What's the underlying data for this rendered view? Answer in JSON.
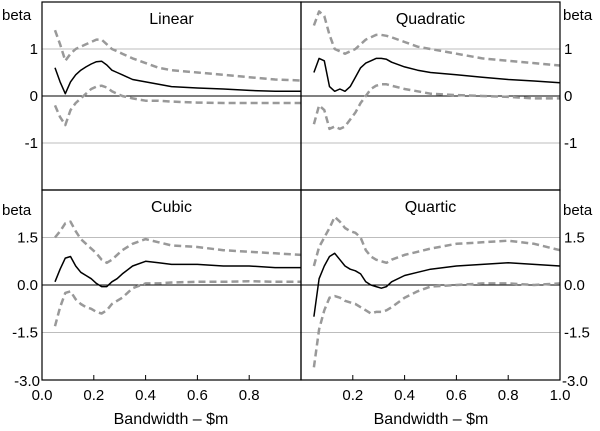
{
  "y_axis_label": "beta",
  "x_axis_label": "Bandwidth – $m",
  "colors": {
    "estimate": "#000000",
    "interval": "#999999",
    "grid": "#bdbdbd",
    "frame": "#000000"
  },
  "chart_data": [
    {
      "type": "line",
      "title": "Linear",
      "xlim": [
        0,
        1.0
      ],
      "ylim": [
        -2,
        2
      ],
      "yticks": [
        1,
        0,
        -1
      ],
      "ytick_labels": [
        "1",
        "0",
        "-1"
      ],
      "xticks": [
        0,
        0.2,
        0.4,
        0.6,
        0.8
      ],
      "xtick_labels": [
        "0.0",
        "0.2",
        "0.4",
        "0.6",
        "0.8"
      ],
      "series": [
        {
          "role": "estimate",
          "x": [
            0.05,
            0.07,
            0.09,
            0.11,
            0.13,
            0.15,
            0.17,
            0.19,
            0.21,
            0.23,
            0.25,
            0.27,
            0.29,
            0.31,
            0.35,
            0.4,
            0.45,
            0.5,
            0.6,
            0.7,
            0.8,
            0.9,
            1.0
          ],
          "y": [
            0.6,
            0.3,
            0.05,
            0.3,
            0.45,
            0.55,
            0.62,
            0.68,
            0.73,
            0.74,
            0.66,
            0.55,
            0.5,
            0.45,
            0.35,
            0.3,
            0.25,
            0.2,
            0.17,
            0.15,
            0.12,
            0.1,
            0.1
          ]
        },
        {
          "role": "upper",
          "x": [
            0.05,
            0.07,
            0.09,
            0.11,
            0.13,
            0.15,
            0.17,
            0.19,
            0.21,
            0.23,
            0.25,
            0.27,
            0.29,
            0.31,
            0.35,
            0.4,
            0.45,
            0.5,
            0.6,
            0.7,
            0.8,
            0.9,
            1.0
          ],
          "y": [
            1.4,
            1.1,
            0.75,
            0.9,
            1.0,
            1.05,
            1.1,
            1.15,
            1.2,
            1.2,
            1.1,
            1.0,
            0.95,
            0.9,
            0.8,
            0.7,
            0.6,
            0.55,
            0.5,
            0.45,
            0.4,
            0.35,
            0.33
          ]
        },
        {
          "role": "lower",
          "x": [
            0.05,
            0.07,
            0.09,
            0.11,
            0.13,
            0.15,
            0.17,
            0.19,
            0.21,
            0.23,
            0.25,
            0.27,
            0.29,
            0.31,
            0.35,
            0.4,
            0.45,
            0.5,
            0.6,
            0.7,
            0.8,
            0.9,
            1.0
          ],
          "y": [
            -0.2,
            -0.45,
            -0.62,
            -0.3,
            -0.15,
            -0.05,
            0.05,
            0.15,
            0.2,
            0.22,
            0.18,
            0.1,
            0.05,
            0.0,
            -0.05,
            -0.1,
            -0.1,
            -0.12,
            -0.14,
            -0.15,
            -0.15,
            -0.15,
            -0.15
          ]
        }
      ]
    },
    {
      "type": "line",
      "title": "Quadratic",
      "xlim": [
        0,
        1.0
      ],
      "ylim": [
        -2,
        2
      ],
      "yticks": [
        1,
        0,
        -1
      ],
      "ytick_labels": [
        "1",
        "0",
        "-1"
      ],
      "xticks": [
        0.2,
        0.4,
        0.6,
        0.8,
        1.0
      ],
      "xtick_labels": [
        "0.2",
        "0.4",
        "0.6",
        "0.8",
        "1.0"
      ],
      "series": [
        {
          "role": "estimate",
          "x": [
            0.05,
            0.07,
            0.09,
            0.11,
            0.13,
            0.15,
            0.17,
            0.19,
            0.21,
            0.23,
            0.25,
            0.27,
            0.29,
            0.31,
            0.33,
            0.35,
            0.4,
            0.45,
            0.5,
            0.6,
            0.7,
            0.8,
            0.9,
            1.0
          ],
          "y": [
            0.5,
            0.8,
            0.75,
            0.2,
            0.1,
            0.15,
            0.1,
            0.2,
            0.4,
            0.6,
            0.7,
            0.75,
            0.8,
            0.8,
            0.78,
            0.72,
            0.62,
            0.55,
            0.5,
            0.45,
            0.4,
            0.35,
            0.32,
            0.28
          ]
        },
        {
          "role": "upper",
          "x": [
            0.05,
            0.07,
            0.09,
            0.11,
            0.13,
            0.15,
            0.17,
            0.19,
            0.21,
            0.23,
            0.25,
            0.27,
            0.29,
            0.31,
            0.33,
            0.35,
            0.4,
            0.45,
            0.5,
            0.6,
            0.7,
            0.8,
            0.9,
            1.0
          ],
          "y": [
            1.5,
            1.8,
            1.7,
            1.3,
            1.0,
            0.95,
            0.9,
            0.95,
            1.0,
            1.1,
            1.2,
            1.25,
            1.3,
            1.3,
            1.28,
            1.25,
            1.15,
            1.05,
            1.0,
            0.9,
            0.8,
            0.75,
            0.7,
            0.65
          ]
        },
        {
          "role": "lower",
          "x": [
            0.05,
            0.07,
            0.09,
            0.11,
            0.13,
            0.15,
            0.17,
            0.19,
            0.21,
            0.23,
            0.25,
            0.27,
            0.29,
            0.31,
            0.33,
            0.35,
            0.4,
            0.45,
            0.5,
            0.6,
            0.7,
            0.8,
            0.9,
            1.0
          ],
          "y": [
            -0.6,
            -0.2,
            -0.3,
            -0.7,
            -0.65,
            -0.7,
            -0.65,
            -0.5,
            -0.35,
            -0.15,
            0.0,
            0.15,
            0.22,
            0.25,
            0.25,
            0.22,
            0.15,
            0.1,
            0.05,
            0.02,
            0.0,
            -0.02,
            -0.05,
            -0.05
          ]
        }
      ]
    },
    {
      "type": "line",
      "title": "Cubic",
      "xlim": [
        0,
        1.0
      ],
      "ylim": [
        -3.0,
        3.0
      ],
      "yticks": [
        1.5,
        0,
        -1.5
      ],
      "ytick_labels": [
        "1.5",
        "0.0",
        "-1.5"
      ],
      "xticks": [
        0,
        0.2,
        0.4,
        0.6,
        0.8
      ],
      "xtick_labels": [
        "0.0",
        "0.2",
        "0.4",
        "0.6",
        "0.8"
      ],
      "series": [
        {
          "role": "estimate",
          "x": [
            0.05,
            0.07,
            0.09,
            0.11,
            0.13,
            0.15,
            0.17,
            0.19,
            0.21,
            0.23,
            0.25,
            0.27,
            0.29,
            0.31,
            0.35,
            0.4,
            0.45,
            0.5,
            0.6,
            0.7,
            0.8,
            0.9,
            1.0
          ],
          "y": [
            0.1,
            0.5,
            0.85,
            0.9,
            0.6,
            0.4,
            0.3,
            0.2,
            0.05,
            -0.05,
            -0.05,
            0.1,
            0.2,
            0.35,
            0.6,
            0.75,
            0.7,
            0.65,
            0.65,
            0.6,
            0.6,
            0.55,
            0.55
          ]
        },
        {
          "role": "upper",
          "x": [
            0.05,
            0.07,
            0.09,
            0.11,
            0.13,
            0.15,
            0.17,
            0.19,
            0.21,
            0.23,
            0.25,
            0.27,
            0.29,
            0.31,
            0.35,
            0.4,
            0.45,
            0.5,
            0.6,
            0.7,
            0.8,
            0.9,
            1.0
          ],
          "y": [
            1.5,
            1.7,
            1.95,
            2.0,
            1.7,
            1.45,
            1.3,
            1.15,
            1.0,
            0.8,
            0.7,
            0.8,
            0.95,
            1.1,
            1.3,
            1.45,
            1.35,
            1.25,
            1.2,
            1.1,
            1.05,
            1.0,
            0.95
          ]
        },
        {
          "role": "lower",
          "x": [
            0.05,
            0.07,
            0.09,
            0.11,
            0.13,
            0.15,
            0.17,
            0.19,
            0.21,
            0.23,
            0.25,
            0.27,
            0.29,
            0.31,
            0.35,
            0.4,
            0.45,
            0.5,
            0.6,
            0.7,
            0.8,
            0.9,
            1.0
          ],
          "y": [
            -1.3,
            -0.7,
            -0.25,
            -0.2,
            -0.45,
            -0.6,
            -0.7,
            -0.75,
            -0.85,
            -0.9,
            -0.8,
            -0.6,
            -0.5,
            -0.4,
            -0.1,
            0.05,
            0.05,
            0.08,
            0.1,
            0.1,
            0.12,
            0.1,
            0.1
          ]
        }
      ]
    },
    {
      "type": "line",
      "title": "Quartic",
      "xlim": [
        0,
        1.0
      ],
      "ylim": [
        -3.0,
        3.0
      ],
      "yticks": [
        1.5,
        0,
        -1.5
      ],
      "ytick_labels": [
        "1.5",
        "0.0",
        "-1.5"
      ],
      "xticks": [
        0.2,
        0.4,
        0.6,
        0.8,
        1.0
      ],
      "xtick_labels": [
        "0.2",
        "0.4",
        "0.6",
        "0.8",
        "1.0"
      ],
      "series": [
        {
          "role": "estimate",
          "x": [
            0.05,
            0.07,
            0.09,
            0.11,
            0.13,
            0.15,
            0.17,
            0.19,
            0.21,
            0.23,
            0.25,
            0.27,
            0.29,
            0.31,
            0.33,
            0.35,
            0.4,
            0.45,
            0.5,
            0.6,
            0.7,
            0.8,
            0.9,
            1.0
          ],
          "y": [
            -1.0,
            0.2,
            0.6,
            0.9,
            1.0,
            0.8,
            0.6,
            0.5,
            0.45,
            0.35,
            0.1,
            0.0,
            -0.05,
            -0.1,
            -0.05,
            0.1,
            0.3,
            0.4,
            0.5,
            0.6,
            0.65,
            0.7,
            0.65,
            0.6
          ]
        },
        {
          "role": "upper",
          "x": [
            0.05,
            0.07,
            0.09,
            0.11,
            0.13,
            0.15,
            0.17,
            0.19,
            0.21,
            0.23,
            0.25,
            0.27,
            0.29,
            0.31,
            0.33,
            0.35,
            0.4,
            0.45,
            0.5,
            0.6,
            0.7,
            0.8,
            0.9,
            1.0
          ],
          "y": [
            0.6,
            1.2,
            1.5,
            1.8,
            2.15,
            2.0,
            1.8,
            1.7,
            1.65,
            1.5,
            1.1,
            0.9,
            0.8,
            0.75,
            0.7,
            0.8,
            0.95,
            1.05,
            1.15,
            1.3,
            1.35,
            1.4,
            1.3,
            1.1
          ]
        },
        {
          "role": "lower",
          "x": [
            0.05,
            0.07,
            0.09,
            0.11,
            0.13,
            0.15,
            0.17,
            0.19,
            0.21,
            0.23,
            0.25,
            0.27,
            0.29,
            0.31,
            0.33,
            0.35,
            0.4,
            0.45,
            0.5,
            0.6,
            0.7,
            0.8,
            0.9,
            1.0
          ],
          "y": [
            -2.6,
            -1.4,
            -0.8,
            -0.4,
            -0.35,
            -0.4,
            -0.5,
            -0.55,
            -0.6,
            -0.7,
            -0.8,
            -0.9,
            -0.85,
            -0.85,
            -0.8,
            -0.7,
            -0.4,
            -0.2,
            -0.05,
            0.0,
            0.05,
            0.05,
            0.0,
            0.05
          ]
        }
      ]
    }
  ]
}
